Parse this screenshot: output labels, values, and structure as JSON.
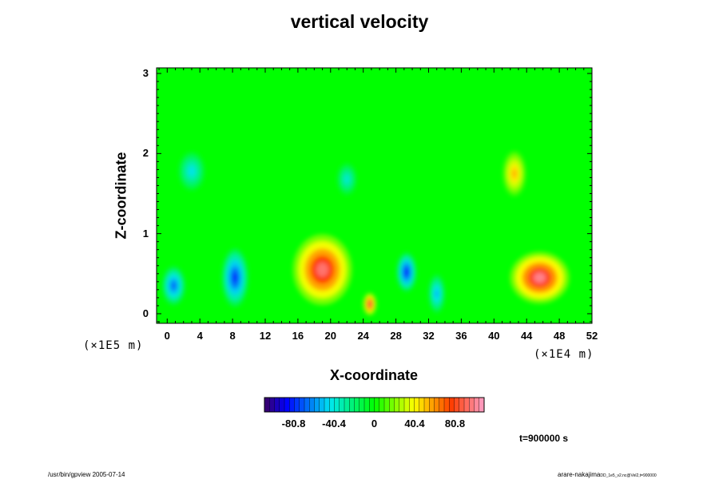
{
  "chart_data": {
    "type": "heatmap",
    "title": "vertical velocity",
    "xlabel": "X-coordinate",
    "ylabel": "Z-coordinate",
    "x_unit": "(×1E4 m)",
    "y_unit": "(×1E5 m)",
    "xlim": [
      -1.3,
      52
    ],
    "ylim": [
      -0.12,
      3.07
    ],
    "x_ticks": [
      "0",
      "4",
      "8",
      "12",
      "16",
      "20",
      "24",
      "28",
      "32",
      "36",
      "40",
      "44",
      "48",
      "52"
    ],
    "y_ticks": [
      "0",
      "1",
      "2",
      "3"
    ],
    "colorbar": {
      "ticks": [
        "-80.8",
        "-40.4",
        "0",
        "40.4",
        "80.8"
      ],
      "range": [
        -110,
        110
      ]
    },
    "field_blobs": [
      {
        "x": 0.8,
        "z": 0.35,
        "value": -70,
        "sx": 0.7,
        "sz": 0.12
      },
      {
        "x": 8.3,
        "z": 0.45,
        "value": -80,
        "sx": 0.8,
        "sz": 0.18
      },
      {
        "x": 29.3,
        "z": 0.52,
        "value": -85,
        "sx": 0.6,
        "sz": 0.12
      },
      {
        "x": 33.0,
        "z": 0.25,
        "value": -55,
        "sx": 0.5,
        "sz": 0.12
      },
      {
        "x": 19.0,
        "z": 0.55,
        "value": 95,
        "sx": 1.8,
        "sz": 0.22
      },
      {
        "x": 45.6,
        "z": 0.45,
        "value": 100,
        "sx": 1.8,
        "sz": 0.16
      },
      {
        "x": 24.8,
        "z": 0.12,
        "value": 90,
        "sx": 0.4,
        "sz": 0.07
      },
      {
        "x": 42.5,
        "z": 1.75,
        "value": 55,
        "sx": 0.7,
        "sz": 0.14
      },
      {
        "x": 3.0,
        "z": 1.78,
        "value": -45,
        "sx": 0.8,
        "sz": 0.12
      },
      {
        "x": 22.0,
        "z": 1.68,
        "value": -40,
        "sx": 0.6,
        "sz": 0.1
      }
    ]
  },
  "labels": {
    "time": "t=900000 s",
    "footer_left": "/usr/bin/gpview 2005-07-14",
    "footer_right": "arare-nakajima",
    "footer_right_small": "DD_1e5_v2.nc@Vel2,t=900000"
  },
  "colors": {
    "background": "#00ff00",
    "frame": "#000000"
  }
}
